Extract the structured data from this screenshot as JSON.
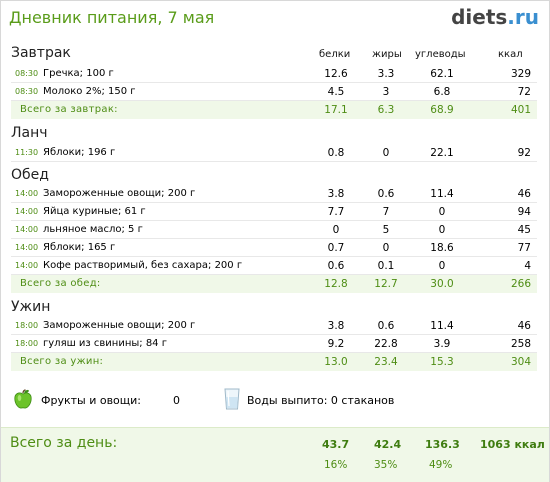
{
  "header": {
    "title": "Дневник питания, 7 мая",
    "logo_part1": "diets",
    "logo_part2": ".ru"
  },
  "columns": {
    "protein": "белки",
    "fat": "жиры",
    "carbs": "углеводы",
    "kcal": "ккал"
  },
  "meals": [
    {
      "title": "Завтрак",
      "items": [
        {
          "time": "08:30",
          "food": "Гречка; 100 г",
          "protein": "12.6",
          "fat": "3.3",
          "carbs": "62.1",
          "kcal": "329"
        },
        {
          "time": "08:30",
          "food": "Молоко 2%; 150 г",
          "protein": "4.5",
          "fat": "3",
          "carbs": "6.8",
          "kcal": "72"
        }
      ],
      "total": {
        "label": "Всего за завтрак:",
        "protein": "17.1",
        "fat": "6.3",
        "carbs": "68.9",
        "kcal": "401"
      }
    },
    {
      "title": "Ланч",
      "items": [
        {
          "time": "11:30",
          "food": "Яблоки; 196 г",
          "protein": "0.8",
          "fat": "0",
          "carbs": "22.1",
          "kcal": "92"
        }
      ]
    },
    {
      "title": "Обед",
      "items": [
        {
          "time": "14:00",
          "food": "Замороженные овощи; 200 г",
          "protein": "3.8",
          "fat": "0.6",
          "carbs": "11.4",
          "kcal": "46"
        },
        {
          "time": "14:00",
          "food": "Яйца куриные; 61 г",
          "protein": "7.7",
          "fat": "7",
          "carbs": "0",
          "kcal": "94"
        },
        {
          "time": "14:00",
          "food": "льняное масло; 5 г",
          "protein": "0",
          "fat": "5",
          "carbs": "0",
          "kcal": "45"
        },
        {
          "time": "14:00",
          "food": "Яблоки; 165 г",
          "protein": "0.7",
          "fat": "0",
          "carbs": "18.6",
          "kcal": "77"
        },
        {
          "time": "14:00",
          "food": "Кофе растворимый, без сахара; 200 г",
          "protein": "0.6",
          "fat": "0.1",
          "carbs": "0",
          "kcal": "4"
        }
      ],
      "total": {
        "label": "Всего за обед:",
        "protein": "12.8",
        "fat": "12.7",
        "carbs": "30.0",
        "kcal": "266"
      }
    },
    {
      "title": "Ужин",
      "items": [
        {
          "time": "18:00",
          "food": "Замороженные овощи; 200 г",
          "protein": "3.8",
          "fat": "0.6",
          "carbs": "11.4",
          "kcal": "46"
        },
        {
          "time": "18:00",
          "food": "гуляш из свинины; 84 г",
          "protein": "9.2",
          "fat": "22.8",
          "carbs": "3.9",
          "kcal": "258"
        }
      ],
      "total": {
        "label": "Всего за ужин:",
        "protein": "13.0",
        "fat": "23.4",
        "carbs": "15.3",
        "kcal": "304"
      }
    }
  ],
  "extras": {
    "fruit_label": "Фрукты и овощи:",
    "fruit_value": "0",
    "water_label": "Воды выпито: 0 стаканов",
    "fruit_icon": "green-apple-icon",
    "water_icon": "water-glass-icon"
  },
  "day_total": {
    "label": "Всего за день:",
    "protein": "43.7",
    "fat": "42.4",
    "carbs": "136.3",
    "kcal": "1063 ккал",
    "protein_pct": "16%",
    "fat_pct": "35%",
    "carbs_pct": "49%"
  },
  "colors": {
    "accent_green": "#5a9c1a",
    "total_bg": "#f0f8e8",
    "logo_blue": "#3a8fd0"
  }
}
